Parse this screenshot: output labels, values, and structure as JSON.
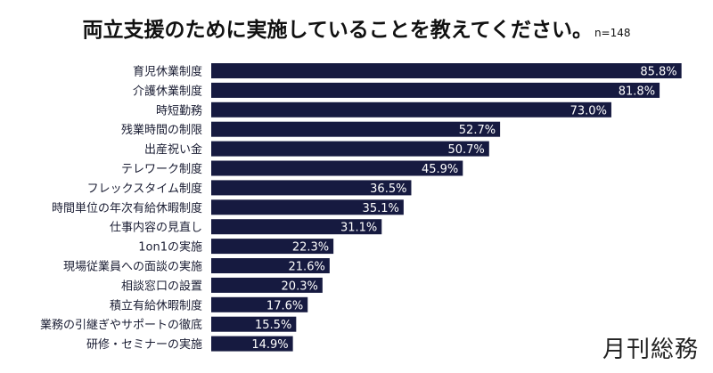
{
  "chart_data": {
    "type": "bar",
    "orientation": "horizontal",
    "title": "両立支援のために実施していることを教えてください。",
    "sample_note": "n=148",
    "categories": [
      "育児休業制度",
      "介護休業制度",
      "時短勤務",
      "残業時間の制限",
      "出産祝い金",
      "テレワーク制度",
      "フレックスタイム制度",
      "時間単位の年次有給休暇制度",
      "仕事内容の見直し",
      "1on1の実施",
      "現場従業員への面談の実施",
      "相談窓口の設置",
      "積立有給休暇制度",
      "業務の引継ぎやサポートの徹底",
      "研修・セミナーの実施"
    ],
    "values": [
      85.8,
      81.8,
      73.0,
      52.7,
      50.7,
      45.9,
      36.5,
      35.1,
      31.1,
      22.3,
      21.6,
      20.3,
      17.6,
      15.5,
      14.9
    ],
    "labels": [
      "85.8%",
      "81.8%",
      "73.0%",
      "52.7%",
      "50.7%",
      "45.9%",
      "36.5%",
      "35.1%",
      "31.1%",
      "22.3%",
      "21.6%",
      "20.3%",
      "17.6%",
      "15.5%",
      "14.9%"
    ],
    "xlabel": "",
    "ylabel": "",
    "xlim": [
      0,
      88
    ],
    "grid": false,
    "bar_color": "#161a40"
  },
  "brand": "月刊総務"
}
